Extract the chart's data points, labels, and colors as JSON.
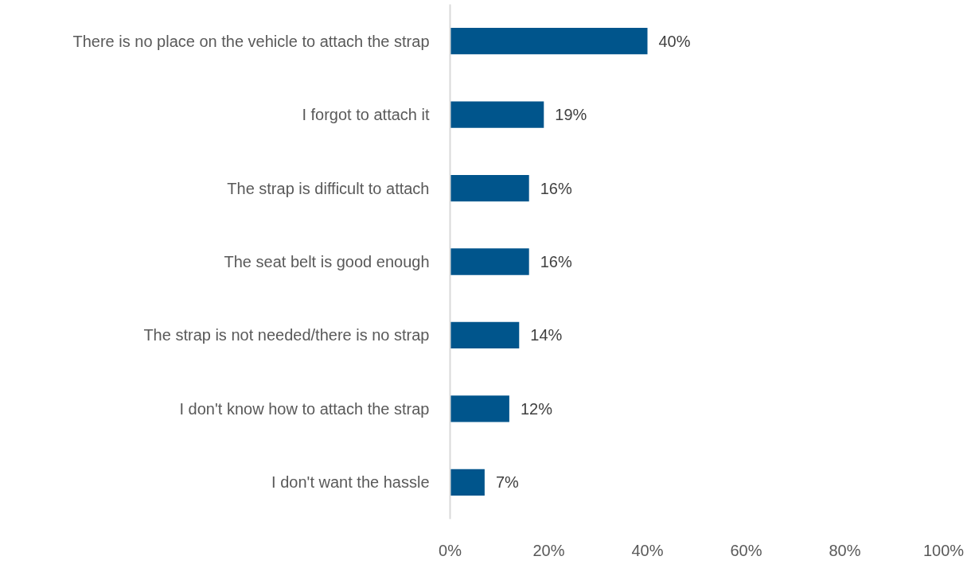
{
  "chart_data": {
    "type": "bar",
    "orientation": "horizontal",
    "categories": [
      "There is no place on the vehicle to attach the strap",
      "I forgot to attach it",
      "The strap is difficult to attach",
      "The seat belt is good enough",
      "The strap is not needed/there is no strap",
      "I don't know how to attach the strap",
      "I don't want the hassle"
    ],
    "values": [
      40,
      19,
      16,
      16,
      14,
      12,
      7
    ],
    "value_labels": [
      "40%",
      "19%",
      "16%",
      "16%",
      "14%",
      "12%",
      "7%"
    ],
    "color": "#00558c",
    "xlim": [
      0,
      100
    ],
    "xticks": [
      {
        "value": 0,
        "label": "0%"
      },
      {
        "value": 20,
        "label": "20%"
      },
      {
        "value": 40,
        "label": "40%"
      },
      {
        "value": 60,
        "label": "60%"
      },
      {
        "value": 80,
        "label": "80%"
      },
      {
        "value": 100,
        "label": "100%"
      }
    ],
    "grid": false
  }
}
